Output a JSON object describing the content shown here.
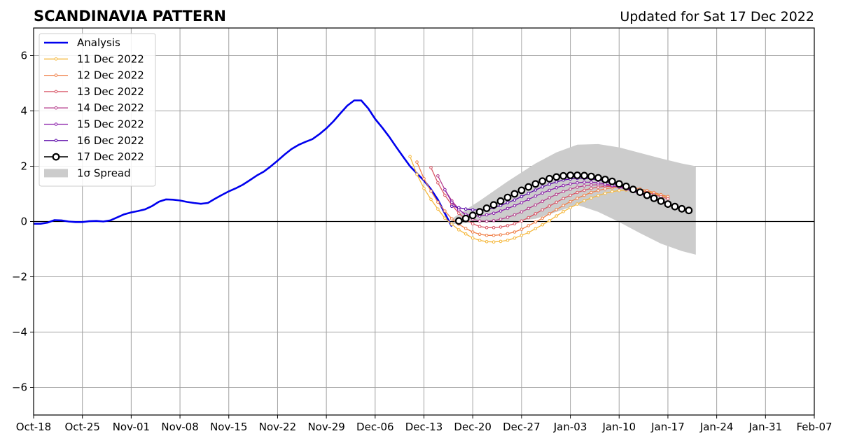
{
  "chart_data": {
    "type": "line",
    "title": "SCANDINAVIA PATTERN",
    "subtitle": "Updated for Sat 17 Dec 2022",
    "xlabel": "",
    "ylabel": "",
    "xlim": [
      "2022-10-18",
      "2023-02-07"
    ],
    "ylim": [
      -7,
      7
    ],
    "grid": true,
    "legend_position": "top-left",
    "x_ticks": [
      "Oct-18",
      "Oct-25",
      "Nov-01",
      "Nov-08",
      "Nov-15",
      "Nov-22",
      "Nov-29",
      "Dec-06",
      "Dec-13",
      "Dec-20",
      "Dec-27",
      "Jan-03",
      "Jan-10",
      "Jan-17",
      "Jan-24",
      "Jan-31",
      "Feb-07"
    ],
    "y_ticks": [
      -6,
      -4,
      -2,
      0,
      2,
      4,
      6
    ],
    "analysis": {
      "name": "Analysis",
      "color": "#0000ee",
      "start": "2022-10-18",
      "values": [
        -0.08,
        -0.08,
        -0.04,
        0.05,
        0.04,
        0.0,
        -0.02,
        -0.02,
        0.01,
        0.02,
        0.0,
        0.04,
        0.15,
        0.26,
        0.33,
        0.38,
        0.44,
        0.56,
        0.72,
        0.8,
        0.79,
        0.76,
        0.71,
        0.67,
        0.64,
        0.67,
        0.82,
        0.96,
        1.09,
        1.2,
        1.33,
        1.49,
        1.66,
        1.8,
        1.99,
        2.2,
        2.42,
        2.62,
        2.77,
        2.88,
        2.98,
        3.16,
        3.37,
        3.62,
        3.91,
        4.19,
        4.38,
        4.38,
        4.09,
        3.71,
        3.4,
        3.07,
        2.7,
        2.35,
        2.0,
        1.74,
        1.48,
        1.17,
        0.79,
        0.29,
        -0.18
      ]
    },
    "forecasts": [
      {
        "name": "11 Dec 2022",
        "color": "#f5b83d",
        "start": "2022-12-11",
        "values": [
          2.35,
          1.7,
          1.2,
          0.8,
          0.45,
          0.12,
          -0.1,
          -0.3,
          -0.45,
          -0.6,
          -0.68,
          -0.73,
          -0.74,
          -0.72,
          -0.68,
          -0.6,
          -0.5,
          -0.4,
          -0.26,
          -0.12,
          0.03,
          0.2,
          0.36,
          0.5,
          0.63,
          0.75,
          0.85,
          0.94,
          1.02,
          1.08,
          1.12,
          1.14,
          1.14,
          1.12,
          1.08,
          1.02,
          0.95,
          0.88
        ]
      },
      {
        "name": "12 Dec 2022",
        "color": "#f0814a",
        "start": "2022-12-12",
        "values": [
          2.15,
          1.55,
          1.1,
          0.7,
          0.38,
          0.1,
          -0.1,
          -0.25,
          -0.38,
          -0.46,
          -0.5,
          -0.5,
          -0.48,
          -0.44,
          -0.38,
          -0.28,
          -0.15,
          -0.02,
          0.12,
          0.28,
          0.43,
          0.58,
          0.72,
          0.84,
          0.95,
          1.05,
          1.12,
          1.18,
          1.22,
          1.24,
          1.24,
          1.22,
          1.18,
          1.12,
          1.05,
          0.97,
          0.9
        ]
      },
      {
        "name": "13 Dec 2022",
        "color": "#d95565",
        "start": "2022-12-14",
        "values": [
          1.95,
          1.4,
          0.95,
          0.6,
          0.3,
          0.08,
          -0.08,
          -0.18,
          -0.22,
          -0.22,
          -0.2,
          -0.15,
          -0.08,
          0.02,
          0.14,
          0.28,
          0.42,
          0.56,
          0.7,
          0.83,
          0.95,
          1.05,
          1.13,
          1.2,
          1.24,
          1.27,
          1.27,
          1.26,
          1.23,
          1.18,
          1.12,
          1.05,
          0.98,
          0.9,
          0.82
        ]
      },
      {
        "name": "14 Dec 2022",
        "color": "#b53e8c",
        "start": "2022-12-15",
        "values": [
          1.65,
          1.15,
          0.75,
          0.45,
          0.22,
          0.08,
          0.02,
          0.01,
          0.03,
          0.08,
          0.15,
          0.24,
          0.35,
          0.47,
          0.6,
          0.73,
          0.86,
          0.98,
          1.08,
          1.17,
          1.24,
          1.29,
          1.32,
          1.33,
          1.32,
          1.29,
          1.24,
          1.18,
          1.11,
          1.03,
          0.95,
          0.86,
          0.77,
          0.68
        ]
      },
      {
        "name": "15 Dec 2022",
        "color": "#8a1faa",
        "start": "2022-12-16",
        "values": [
          1.15,
          0.7,
          0.42,
          0.26,
          0.2,
          0.2,
          0.24,
          0.3,
          0.38,
          0.47,
          0.57,
          0.68,
          0.8,
          0.92,
          1.03,
          1.13,
          1.22,
          1.3,
          1.36,
          1.4,
          1.42,
          1.42,
          1.4,
          1.36,
          1.3,
          1.24,
          1.17,
          1.09,
          1.0,
          0.91,
          0.82,
          0.73,
          0.64,
          0.55
        ]
      },
      {
        "name": "16 Dec 2022",
        "color": "#5c0aa8",
        "start": "2022-12-17",
        "values": [
          0.55,
          0.5,
          0.45,
          0.42,
          0.42,
          0.44,
          0.5,
          0.58,
          0.68,
          0.78,
          0.9,
          1.02,
          1.14,
          1.25,
          1.35,
          1.43,
          1.5,
          1.54,
          1.56,
          1.56,
          1.54,
          1.5,
          1.45,
          1.38,
          1.3,
          1.21,
          1.12,
          1.02,
          0.92,
          0.82,
          0.72,
          0.62
        ]
      },
      {
        "name": "17 Dec 2022",
        "color": "#000000",
        "marker": "open-circle",
        "start": "2022-12-18",
        "values": [
          0.02,
          0.11,
          0.22,
          0.35,
          0.48,
          0.6,
          0.74,
          0.87,
          1.0,
          1.13,
          1.25,
          1.36,
          1.46,
          1.55,
          1.61,
          1.65,
          1.67,
          1.67,
          1.66,
          1.63,
          1.58,
          1.52,
          1.45,
          1.36,
          1.27,
          1.16,
          1.06,
          0.95,
          0.84,
          0.74,
          0.63,
          0.54,
          0.46,
          0.4
        ]
      }
    ],
    "spread": {
      "name": "1σ Spread",
      "color": "#cccccc",
      "x": [
        "2022-12-17",
        "2022-12-21",
        "2022-12-25",
        "2022-12-29",
        "2023-01-01",
        "2023-01-04",
        "2023-01-07",
        "2023-01-10",
        "2023-01-13",
        "2023-01-16",
        "2023-01-19",
        "2023-01-21"
      ],
      "upper": [
        0.1,
        0.75,
        1.45,
        2.1,
        2.5,
        2.78,
        2.8,
        2.68,
        2.48,
        2.28,
        2.1,
        2.0
      ],
      "lower": [
        -0.1,
        -0.02,
        -0.02,
        0.1,
        0.35,
        0.6,
        0.35,
        -0.02,
        -0.42,
        -0.8,
        -1.07,
        -1.2
      ]
    },
    "zero_line": 0
  }
}
